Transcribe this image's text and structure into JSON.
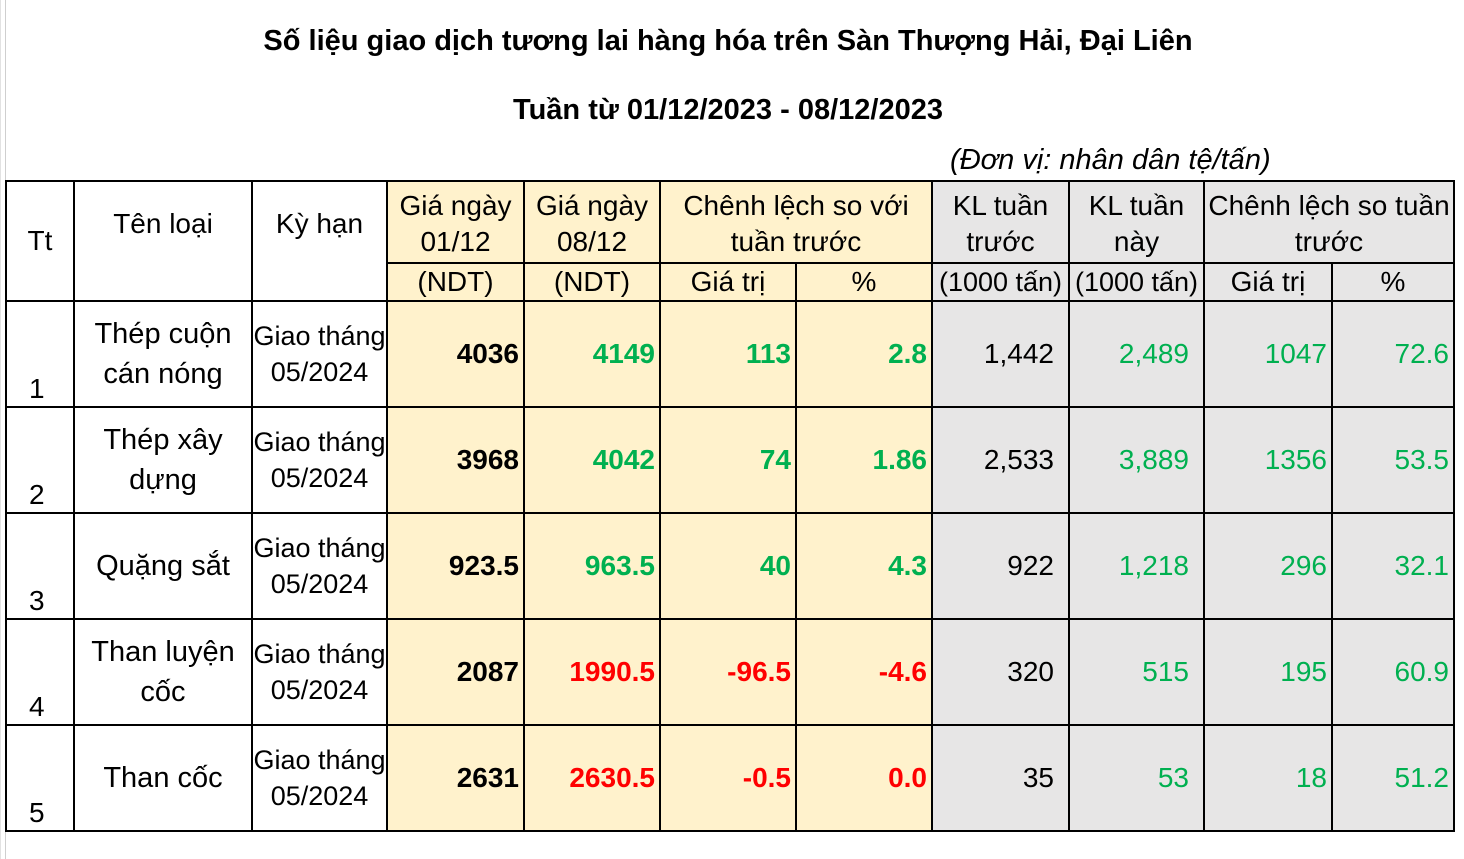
{
  "title": "Số liệu giao dịch tương lai hàng hóa trên Sàn Thượng Hải, Đại Liên",
  "subtitle": "Tuần từ 01/12/2023 - 08/12/2023",
  "unit": "(Đơn vị: nhân dân tệ/tấn)",
  "headers": {
    "tt": "Tt",
    "name": "Tên loại",
    "term": "Kỳ hạn",
    "price1_top": "Giá ngày 01/12",
    "price1_bot": "(NDT)",
    "price2_top": "Giá ngày 08/12",
    "price2_bot": "(NDT)",
    "diff_top": "Chênh lệch so với tuần trước",
    "diff_val": "Giá trị",
    "diff_pct": "%",
    "vol_prev_top": "KL tuần trước",
    "vol_prev_bot": "(1000 tấn)",
    "vol_cur_top": "KL tuần này",
    "vol_cur_bot": "(1000 tấn)",
    "vdiff_top": "Chênh lệch so tuần trước",
    "vdiff_val": "Giá trị",
    "vdiff_pct": "%"
  },
  "colors": {
    "up": "#00b050",
    "down": "#ff0000",
    "price_bg": "#fff2cc",
    "volume_bg": "#e7e6e6"
  },
  "rows": [
    {
      "tt": "1",
      "name": "Thép cuộn cán nóng",
      "term": "Giao tháng 05/2024",
      "p1": "4036",
      "p2": "4149",
      "dv": "113",
      "dp": "2.8",
      "trend": "up",
      "vprev": "1,442",
      "vcur": "2,489",
      "vdv": "1047",
      "vdp": "72.6"
    },
    {
      "tt": "2",
      "name": "Thép xây dựng",
      "term": "Giao tháng 05/2024",
      "p1": "3968",
      "p2": "4042",
      "dv": "74",
      "dp": "1.86",
      "trend": "up",
      "vprev": "2,533",
      "vcur": "3,889",
      "vdv": "1356",
      "vdp": "53.5"
    },
    {
      "tt": "3",
      "name": "Quặng sắt",
      "term": "Giao tháng 05/2024",
      "p1": "923.5",
      "p2": "963.5",
      "dv": "40",
      "dp": "4.3",
      "trend": "up",
      "vprev": "922",
      "vcur": "1,218",
      "vdv": "296",
      "vdp": "32.1"
    },
    {
      "tt": "4",
      "name": "Than luyện cốc",
      "term": "Giao tháng 05/2024",
      "p1": "2087",
      "p2": "1990.5",
      "dv": "-96.5",
      "dp": "-4.6",
      "trend": "down",
      "vprev": "320",
      "vcur": "515",
      "vdv": "195",
      "vdp": "60.9"
    },
    {
      "tt": "5",
      "name": "Than cốc",
      "term": "Giao tháng 05/2024",
      "p1": "2631",
      "p2": "2630.5",
      "dv": "-0.5",
      "dp": "0.0",
      "trend": "down",
      "vprev": "35",
      "vcur": "53",
      "vdv": "18",
      "vdp": "51.2"
    }
  ]
}
